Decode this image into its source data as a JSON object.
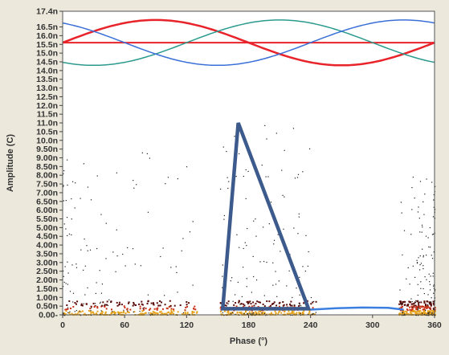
{
  "chart_data": {
    "type": "scatter",
    "title": "",
    "xlabel": "Phase (°)",
    "ylabel": "Amplitude (C)",
    "xlim": [
      0,
      360
    ],
    "ylim": [
      0,
      17.4
    ],
    "x_ticks": [
      0,
      60,
      120,
      180,
      240,
      300,
      360
    ],
    "x_tick_labels": [
      "0",
      "60",
      "120",
      "180",
      "240",
      "300",
      "360"
    ],
    "y_ticks": [
      0,
      0.5,
      1,
      1.5,
      2,
      2.5,
      3,
      3.5,
      4,
      4.5,
      5,
      5.5,
      6,
      6.5,
      7,
      7.5,
      8,
      8.5,
      9,
      9.5,
      10,
      10.5,
      11,
      11.5,
      12,
      12.5,
      13,
      13.5,
      14,
      14.5,
      15,
      15.5,
      16,
      16.5,
      17.4
    ],
    "y_tick_labels": [
      "0.00-",
      "0.50n",
      "1.00n",
      "1.50n",
      "2.00n",
      "2.50n",
      "3.00n",
      "3.50n",
      "4.00n",
      "4.50n",
      "5.00n",
      "5.50n",
      "6.00n",
      "6.50n",
      "7.00n",
      "7.50n",
      "8.00n",
      "8.50n",
      "9.00n",
      "9.50n",
      "10.0n",
      "10.5n",
      "11.0n",
      "11.5n",
      "12.0n",
      "12.5n",
      "13.0n",
      "13.5n",
      "14.0n",
      "14.5n",
      "15.0n",
      "15.5n",
      "16.0n",
      "16.5n",
      "17.4n"
    ],
    "grid": false,
    "reference_lines": {
      "center": 15.6,
      "amplitude": 1.3,
      "sine_series": [
        {
          "color": "#e8232a",
          "phase_shift_deg": 0
        },
        {
          "color": "#2b9a8e",
          "phase_shift_deg": 120
        },
        {
          "color": "#3a6fd8",
          "phase_shift_deg": 240
        }
      ],
      "flat_line": {
        "color": "#e8232a",
        "y": 15.6
      }
    },
    "clusters": [
      {
        "x_range": [
          0,
          130
        ],
        "y_max": 10.0,
        "core_y": 0.4
      },
      {
        "x_range": [
          152,
          245
        ],
        "y_max": 11.0,
        "core_y": 0.4
      },
      {
        "x_range": [
          325,
          360
        ],
        "y_max": 8.5,
        "core_y": 0.4
      }
    ],
    "triangle_annotation": {
      "color": "#3c5a8c",
      "points": [
        [
          155,
          0.35
        ],
        [
          170,
          11.0
        ],
        [
          238,
          0.35
        ]
      ]
    },
    "baseline_curve": {
      "color": "#3a7fe0",
      "points": [
        [
          240,
          0.3
        ],
        [
          265,
          0.38
        ],
        [
          290,
          0.42
        ],
        [
          315,
          0.4
        ],
        [
          330,
          0.3
        ]
      ]
    }
  }
}
